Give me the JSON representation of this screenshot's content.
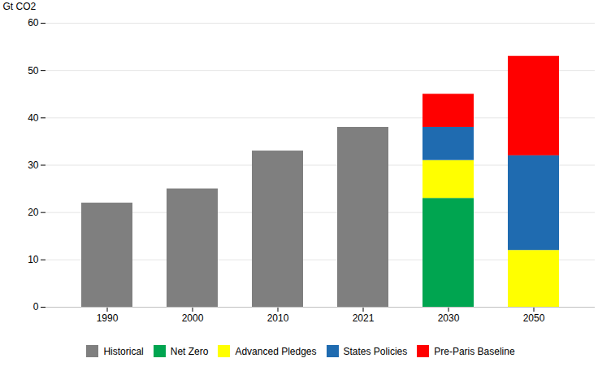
{
  "chart_data": {
    "type": "bar",
    "stacked": true,
    "categories": [
      "1990",
      "2000",
      "2010",
      "2021",
      "2030",
      "2050"
    ],
    "series": [
      {
        "name": "Historical",
        "color": "#7f7f7f",
        "values": [
          22,
          25,
          33,
          38,
          0,
          0
        ]
      },
      {
        "name": "Net Zero",
        "color": "#00A550",
        "values": [
          0,
          0,
          0,
          0,
          23,
          0
        ]
      },
      {
        "name": "Advanced Pledges",
        "color": "#FFFF00",
        "values": [
          0,
          0,
          0,
          0,
          8,
          12
        ]
      },
      {
        "name": "States Policies",
        "color": "#1F6BB0",
        "values": [
          0,
          0,
          0,
          0,
          7,
          20
        ]
      },
      {
        "name": "Pre-Paris Baseline",
        "color": "#FF0000",
        "values": [
          0,
          0,
          0,
          0,
          7,
          21
        ]
      }
    ],
    "ylabel": "Gt CO2",
    "ylim": [
      0,
      60
    ],
    "yticks": [
      0,
      10,
      20,
      30,
      40,
      50,
      60
    ],
    "grid": true,
    "legend": "bottom"
  }
}
